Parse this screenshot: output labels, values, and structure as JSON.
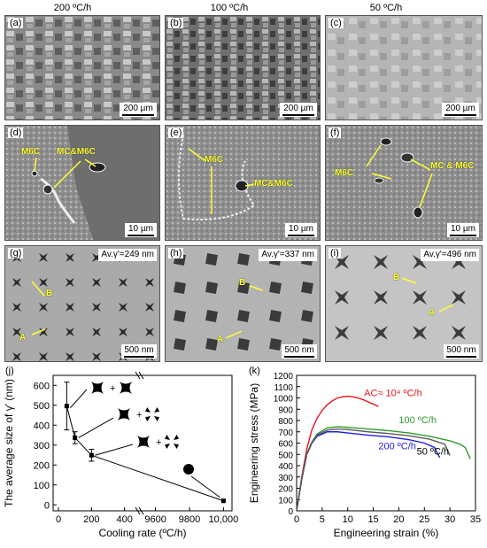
{
  "columns": [
    "200 ºC/h",
    "100 ºC/h",
    "50 ºC/h"
  ],
  "row1": {
    "labels": [
      "(a)",
      "(b)",
      "(c)"
    ],
    "scale": "200 µm"
  },
  "row2": {
    "labels": [
      "(d)",
      "(e)",
      "(f)"
    ],
    "scale": "10 µm",
    "d": {
      "m6c": "M6C",
      "mc": "MC&M6C"
    },
    "e": {
      "m6c": "M6C",
      "mc": "MC&M6C"
    },
    "f": {
      "m6c": "M6C",
      "mc": "MC & M6C"
    }
  },
  "row3": {
    "labels": [
      "(g)",
      "(h)",
      "(i)"
    ],
    "avg": [
      "Av.γ'=249 nm",
      "Av.γ'=337 nm",
      "Av.γ'=496 nm"
    ],
    "scale": "500 nm",
    "markers": [
      "A",
      "B"
    ]
  },
  "panel_j": {
    "label": "(j)",
    "ylabel": "The average size of γ' (nm)",
    "xlabel": "Cooling rate (ºC/h)",
    "xticks": [
      "0",
      "200",
      "400",
      "9600",
      "9800",
      "10,000"
    ],
    "yticks": [
      "0",
      "100",
      "200",
      "300",
      "400",
      "500",
      "600"
    ],
    "plus": "+"
  },
  "panel_k": {
    "label": "(k)",
    "ylabel": "Engineering stress (MPa)",
    "xlabel": "Engineering strain (%)",
    "xticks": [
      "0",
      "5",
      "10",
      "15",
      "20",
      "25",
      "30",
      "35"
    ],
    "yticks": [
      "0",
      "100",
      "200",
      "300",
      "400",
      "500",
      "600",
      "700",
      "800",
      "900",
      "1000",
      "1100",
      "1200"
    ],
    "curve_labels": [
      "AC≈ 10⁴ ºC/h",
      "100 ºC/h",
      "200 ºC/h",
      "50 ºC/h"
    ]
  },
  "chart_data": [
    {
      "type": "scatter",
      "x": [
        50,
        100,
        200,
        10000
      ],
      "y": [
        496,
        337,
        249,
        20
      ],
      "yerr": [
        120,
        30,
        30,
        0
      ],
      "xlabel": "Cooling rate (ºC/h)",
      "ylabel": "The average size of γ' (nm)",
      "ylim": [
        -30,
        650
      ]
    },
    {
      "type": "line",
      "xlabel": "Engineering strain (%)",
      "ylabel": "Engineering stress (MPa)",
      "xlim": [
        0,
        35
      ],
      "ylim": [
        0,
        1200
      ],
      "series": [
        {
          "name": "AC≈ 10⁴ ºC/h",
          "color": "#e8141b",
          "x": [
            0,
            1,
            2,
            3,
            4,
            5,
            6,
            7,
            8,
            9,
            10,
            11,
            12,
            13,
            14,
            15,
            16
          ],
          "y": [
            0,
            300,
            550,
            720,
            820,
            890,
            940,
            975,
            1000,
            1010,
            1015,
            1010,
            1000,
            985,
            965,
            945,
            925
          ]
        },
        {
          "name": "100 ºC/h",
          "color": "#2e9a2e",
          "x": [
            0,
            1,
            2,
            3,
            4,
            6,
            8,
            10,
            14,
            18,
            22,
            26,
            30,
            32,
            33,
            34
          ],
          "y": [
            0,
            280,
            510,
            610,
            680,
            735,
            745,
            740,
            725,
            710,
            690,
            660,
            620,
            590,
            560,
            460
          ]
        },
        {
          "name": "200 ºC/h",
          "color": "#1f1fe0",
          "x": [
            0,
            1,
            2,
            3,
            4,
            6,
            8,
            10,
            14,
            18,
            22,
            25,
            27,
            28
          ],
          "y": [
            0,
            280,
            500,
            600,
            660,
            700,
            700,
            690,
            670,
            655,
            630,
            600,
            560,
            470
          ]
        },
        {
          "name": "50 ºC/h",
          "color": "#5a5a5a",
          "x": [
            0,
            1,
            2,
            3,
            4,
            6,
            8,
            10,
            14,
            18,
            22,
            26,
            29,
            30
          ],
          "y": [
            0,
            280,
            505,
            605,
            670,
            715,
            725,
            720,
            700,
            685,
            665,
            635,
            590,
            490
          ]
        }
      ]
    }
  ]
}
